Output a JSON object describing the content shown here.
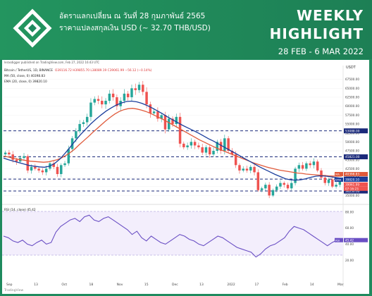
{
  "banner": {
    "line1": "อัตราแลกเปลี่ยน ณ วันที่ 28 กุมภาพันธ์ 2565",
    "line2": "ราคาแปลงสกุลเงิน USD (~ 32.70 THB/USD)",
    "title_top": "WEEKLY",
    "title_bottom": "HIGHLIGHT",
    "date_range": "28 FEB - 6 MAR 2022",
    "colors": {
      "bg": "#1f8a5e",
      "logo": "#ffffff"
    }
  },
  "chart_header": {
    "published": "lerasdigger published on TradingView.com, Feb 27, 2022 16:43 UTC",
    "symbol": "Bitcoin / TetherUS, 1D, BINANCE",
    "ohlc": "O39116.72 H39855.70 L38089.19 C39061.99 −56.12 (−0.14%)",
    "ma_label": "MA (50, close, 0)  40398.83",
    "ema_label": "EMA (20, close, 0)  39820.10",
    "rsi_label": "RSI (14, close)  45.42",
    "footer": "TradingView",
    "currency": "USDT"
  },
  "chart_data": {
    "type": "candlestick",
    "y_ticks": [
      67500,
      65000,
      62500,
      60000,
      57500,
      55000,
      52500,
      50000,
      47500,
      45000,
      42500,
      40000,
      37500,
      35000
    ],
    "y_tick_labels": [
      "67500.00",
      "65000.00",
      "62500.00",
      "60000.00",
      "57500.00",
      "55000.00",
      "52500.00",
      "50000.00",
      "47500.00",
      "45000.00",
      "42500.00",
      "40000.00",
      "37500.00",
      "35000.00"
    ],
    "x_labels": [
      "Sep",
      "13",
      "Oct",
      "18",
      "Nov",
      "15",
      "Dec",
      "13",
      "2022",
      "17",
      "Feb",
      "14",
      "Mar"
    ],
    "levels": [
      {
        "value": 53088,
        "label": "53088.00"
      },
      {
        "value": 45821,
        "label": "45821.00"
      },
      {
        "value": 39600,
        "label": "39600.00"
      },
      {
        "value": 36250,
        "label": "36250.00"
      }
    ],
    "right_badges": [
      {
        "text": "MA",
        "value": "40398.83",
        "color": "#e05a3b"
      },
      {
        "text": "EMA",
        "value": "39820.10",
        "color": "#1b3e9c"
      },
      {
        "text": "",
        "value": "39061.99",
        "color": "#ef5350"
      },
      {
        "text": "",
        "value": "07:16:23",
        "color": "#ef5350"
      }
    ],
    "close": [
      47000,
      46500,
      45000,
      44500,
      45500,
      46000,
      42000,
      43000,
      42500,
      42000,
      41500,
      42500,
      44000,
      43000,
      41000,
      43500,
      44000,
      48000,
      51000,
      53000,
      55000,
      55500,
      57000,
      61000,
      62000,
      61500,
      60500,
      61500,
      63500,
      62500,
      60000,
      61500,
      63500,
      62500,
      65000,
      64500,
      66000,
      64000,
      60500,
      58000,
      58500,
      56500,
      57500,
      53500,
      56500,
      55000,
      57000,
      49500,
      48500,
      49000,
      50000,
      49000,
      48500,
      47000,
      48500,
      46500,
      47500,
      50000,
      47500,
      51000,
      47500,
      46500,
      43500,
      42000,
      42500,
      42000,
      43000,
      41500,
      36500,
      37000,
      38000,
      35000,
      36500,
      37500,
      38500,
      38000,
      37000,
      38500,
      42500,
      43500,
      42500,
      44000,
      43500,
      44500,
      42000,
      40000,
      38500,
      39500,
      37500,
      38000,
      39061
    ],
    "ma50": [
      46000,
      45800,
      45500,
      45200,
      45000,
      44800,
      44600,
      44500,
      44400,
      44300,
      44400,
      44700,
      45000,
      45500,
      46200,
      47000,
      48000,
      49200,
      50300,
      51400,
      52600,
      53700,
      54800,
      55900,
      56900,
      57800,
      58500,
      59000,
      59300,
      59400,
      59200,
      58900,
      58500,
      58000,
      57400,
      56800,
      56200,
      55500,
      54800,
      54100,
      53400,
      52700,
      52000,
      51300,
      50600,
      50000,
      49400,
      48800,
      48200,
      47700,
      47200,
      46700,
      46200,
      45700,
      45200,
      44700,
      44200,
      43800,
      43400,
      43000,
      42700,
      42400,
      42100,
      41900,
      41700,
      41500,
      41300,
      41200,
      41000,
      40900,
      40800,
      40700,
      40600,
      40500,
      40450,
      40400,
      40398
    ],
    "ema20": [
      45500,
      45000,
      44600,
      44200,
      43800,
      43400,
      43200,
      43000,
      42900,
      43200,
      44000,
      45200,
      46800,
      48500,
      50300,
      52000,
      53500,
      55000,
      56300,
      57500,
      58600,
      59500,
      60300,
      60900,
      61300,
      61400,
      61200,
      60800,
      60200,
      59500,
      58700,
      57900,
      57000,
      56200,
      55400,
      54600,
      53900,
      53200,
      52500,
      51700,
      50900,
      50200,
      49400,
      48600,
      47800,
      47000,
      46200,
      45400,
      44600,
      43800,
      43000,
      42300,
      41600,
      40900,
      40300,
      39700,
      39400,
      39300,
      39400,
      39700,
      40100,
      40400,
      40500,
      40400,
      40200,
      40000,
      39820
    ],
    "rsi": [
      50,
      48,
      44,
      42,
      45,
      40,
      38,
      42,
      45,
      40,
      42,
      55,
      62,
      66,
      70,
      72,
      68,
      74,
      76,
      70,
      68,
      72,
      74,
      70,
      66,
      62,
      58,
      52,
      56,
      48,
      44,
      50,
      46,
      42,
      40,
      44,
      48,
      52,
      50,
      46,
      44,
      40,
      38,
      42,
      46,
      50,
      48,
      44,
      40,
      36,
      34,
      32,
      30,
      24,
      28,
      34,
      38,
      40,
      44,
      48,
      56,
      62,
      60,
      58,
      54,
      50,
      46,
      42,
      38,
      42,
      45,
      45
    ]
  }
}
